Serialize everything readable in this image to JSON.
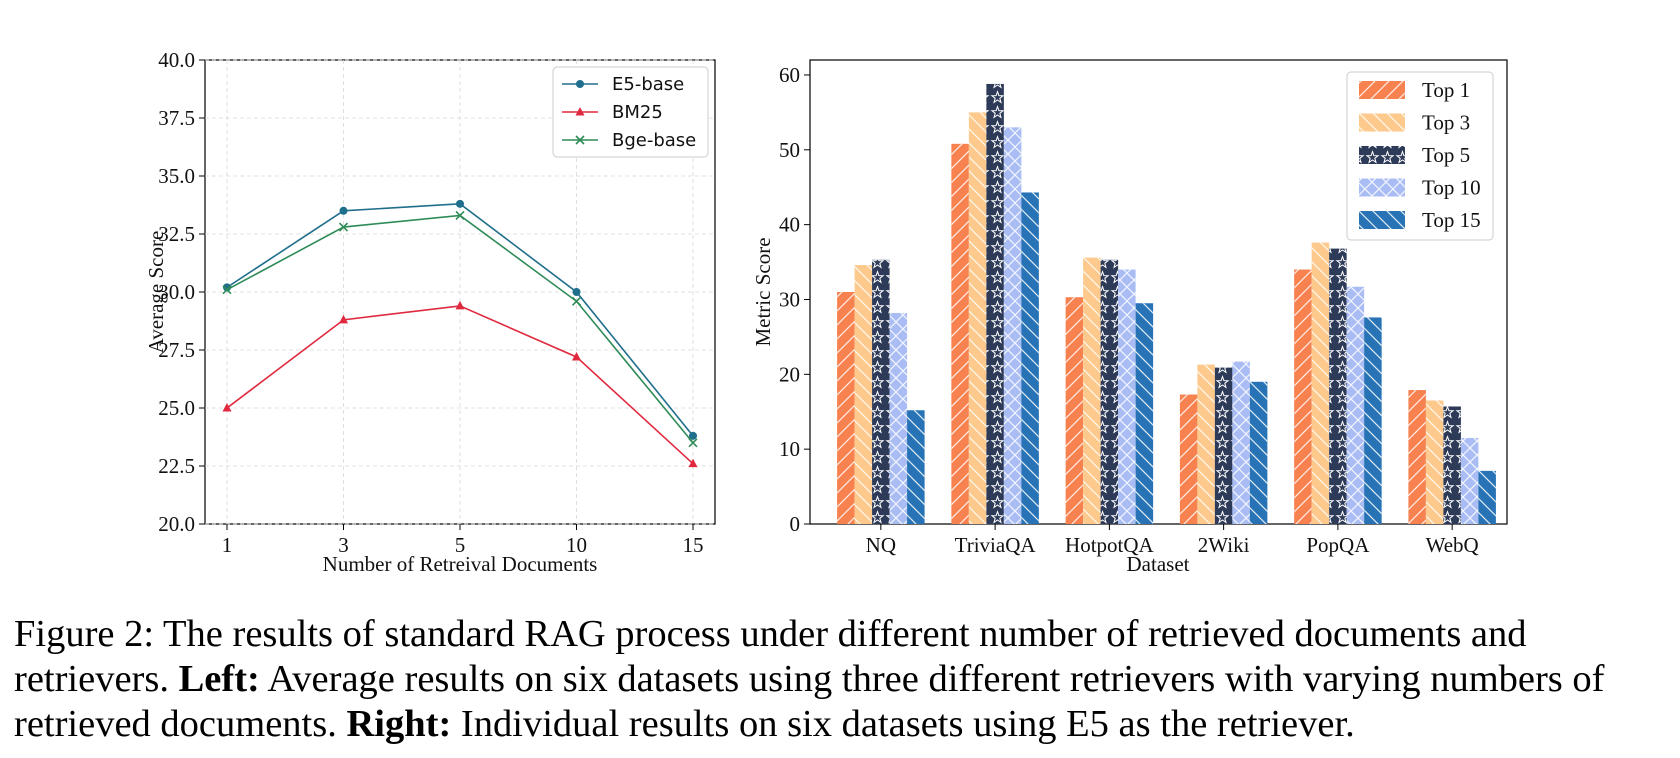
{
  "chart_data": [
    {
      "type": "line",
      "title": "",
      "xlabel": "Number of Retreival Documents",
      "ylabel": "Average Score",
      "categories": [
        "1",
        "3",
        "5",
        "10",
        "15"
      ],
      "ylim": [
        20.0,
        40.0
      ],
      "yticks": [
        "20.0",
        "22.5",
        "25.0",
        "27.5",
        "30.0",
        "32.5",
        "35.0",
        "37.5",
        "40.0"
      ],
      "grid": true,
      "legend_position": "top-right",
      "series": [
        {
          "name": "E5-base",
          "values": [
            30.2,
            33.5,
            33.8,
            30.0,
            23.8
          ],
          "color": "#1f6e8c",
          "marker": "circle"
        },
        {
          "name": "BM25",
          "values": [
            25.0,
            28.8,
            29.4,
            27.2,
            22.6
          ],
          "color": "#e0293f",
          "marker": "triangle"
        },
        {
          "name": "Bge-base",
          "values": [
            30.1,
            32.8,
            33.3,
            29.6,
            23.5
          ],
          "color": "#2e8b57",
          "marker": "x"
        }
      ]
    },
    {
      "type": "bar",
      "title": "",
      "xlabel": "Dataset",
      "ylabel": "Metric Score",
      "categories": [
        "NQ",
        "TriviaQA",
        "HotpotQA",
        "2Wiki",
        "PopQA",
        "WebQ"
      ],
      "ylim": [
        0,
        62
      ],
      "yticks": [
        "0",
        "10",
        "20",
        "30",
        "40",
        "50",
        "60"
      ],
      "grid": false,
      "legend_position": "top-right",
      "series": [
        {
          "name": "Top 1",
          "values": [
            31.0,
            50.8,
            30.3,
            17.3,
            34.0,
            17.9
          ],
          "color": "#f7814f",
          "hatch": "diagonal"
        },
        {
          "name": "Top 3",
          "values": [
            34.6,
            55.0,
            35.6,
            21.3,
            37.6,
            16.5
          ],
          "color": "#fdc98c",
          "hatch": "back-diagonal"
        },
        {
          "name": "Top 5",
          "values": [
            35.3,
            58.8,
            35.3,
            20.9,
            36.8,
            15.7
          ],
          "color": "#2d3a58",
          "hatch": "star"
        },
        {
          "name": "Top 10",
          "values": [
            28.2,
            53.0,
            34.0,
            21.7,
            31.7,
            11.5
          ],
          "color": "#a9bdf4",
          "hatch": "cross"
        },
        {
          "name": "Top 15",
          "values": [
            15.2,
            44.3,
            29.5,
            19.0,
            27.6,
            7.1
          ],
          "color": "#2773b5",
          "hatch": "back-diagonal"
        }
      ]
    }
  ],
  "caption": {
    "figure_label": "Figure 2:",
    "intro": "The results of standard RAG process under different number of retrieved documents and retrievers.",
    "left_label": "Left:",
    "left_text": "Average results on six datasets using three different retrievers with varying numbers of retrieved documents.",
    "right_label": "Right:",
    "right_text": "Individual results on six datasets using E5 as the retriever."
  }
}
